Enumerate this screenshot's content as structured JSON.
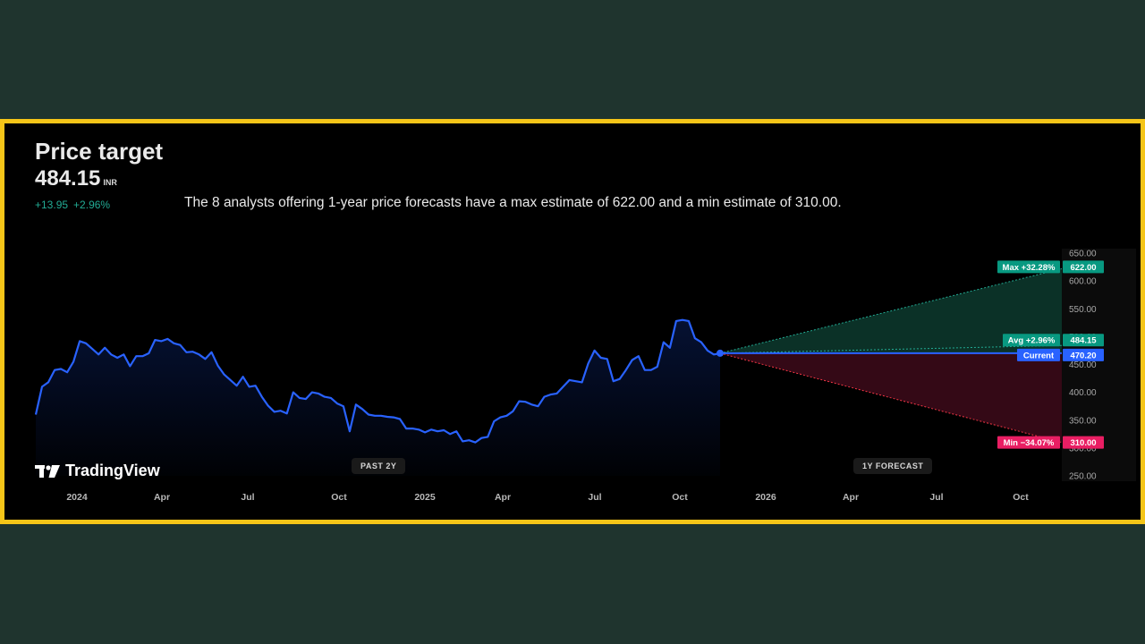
{
  "header": {
    "title": "Price target",
    "price": "484.15",
    "currency": "INR",
    "change_abs": "+13.95",
    "change_pct": "+2.96%",
    "description": "The 8 analysts offering 1-year price forecasts have a max estimate of 622.00 and a min estimate of 310.00."
  },
  "logo": {
    "icon": "tradingview-logo-icon",
    "text": "TradingView"
  },
  "badges": {
    "past": "PAST 2Y",
    "forecast": "1Y FORECAST"
  },
  "colors": {
    "border": "#f5c518",
    "page_bg": "#1f342e",
    "line": "#2962ff",
    "green": "#22ab94",
    "green_label": "#089981",
    "red": "#f23645",
    "red_label": "#e91e63",
    "blue_label": "#2962ff"
  },
  "chart_data": {
    "type": "line",
    "title": "Price target",
    "x_ticks": [
      "2024",
      "Apr",
      "Jul",
      "Oct",
      "2025",
      "Apr",
      "Jul",
      "Oct",
      "2026",
      "Apr",
      "Jul",
      "Oct"
    ],
    "y_ticks": [
      "250.00",
      "300.00",
      "350.00",
      "400.00",
      "450.00",
      "500.00",
      "550.00",
      "600.00",
      "650.00"
    ],
    "ylim": [
      250,
      650
    ],
    "history": {
      "name": "Price (past 2Y)",
      "start": "2023-12",
      "end": "2025-11",
      "values": [
        360,
        410,
        418,
        440,
        442,
        436,
        455,
        492,
        488,
        478,
        468,
        480,
        468,
        462,
        468,
        447,
        465,
        465,
        470,
        494,
        492,
        496,
        488,
        485,
        472,
        473,
        468,
        460,
        472,
        448,
        432,
        422,
        412,
        428,
        410,
        412,
        392,
        376,
        365,
        367,
        362,
        400,
        390,
        388,
        400,
        398,
        392,
        390,
        380,
        375,
        330,
        378,
        370,
        360,
        358,
        358,
        356,
        355,
        352,
        335,
        335,
        333,
        328,
        333,
        330,
        332,
        325,
        330,
        312,
        314,
        310,
        318,
        320,
        348,
        355,
        358,
        366,
        384,
        383,
        378,
        375,
        392,
        396,
        398,
        410,
        422,
        420,
        418,
        452,
        475,
        462,
        460,
        420,
        424,
        440,
        458,
        465,
        440,
        440,
        446,
        490,
        480,
        528,
        530,
        528,
        497,
        490,
        475,
        468,
        470
      ]
    },
    "forecast": {
      "current": {
        "label": "Current",
        "value": 470.2,
        "value_text": "470.20"
      },
      "max": {
        "label": "Max +32.28%",
        "value": 622.0,
        "value_text": "622.00"
      },
      "avg": {
        "label": "Avg +2.96%",
        "value": 484.15,
        "value_text": "484.15"
      },
      "min": {
        "label": "Min −34.07%",
        "value": 310.0,
        "value_text": "310.00"
      },
      "horizon": "1Y"
    }
  }
}
